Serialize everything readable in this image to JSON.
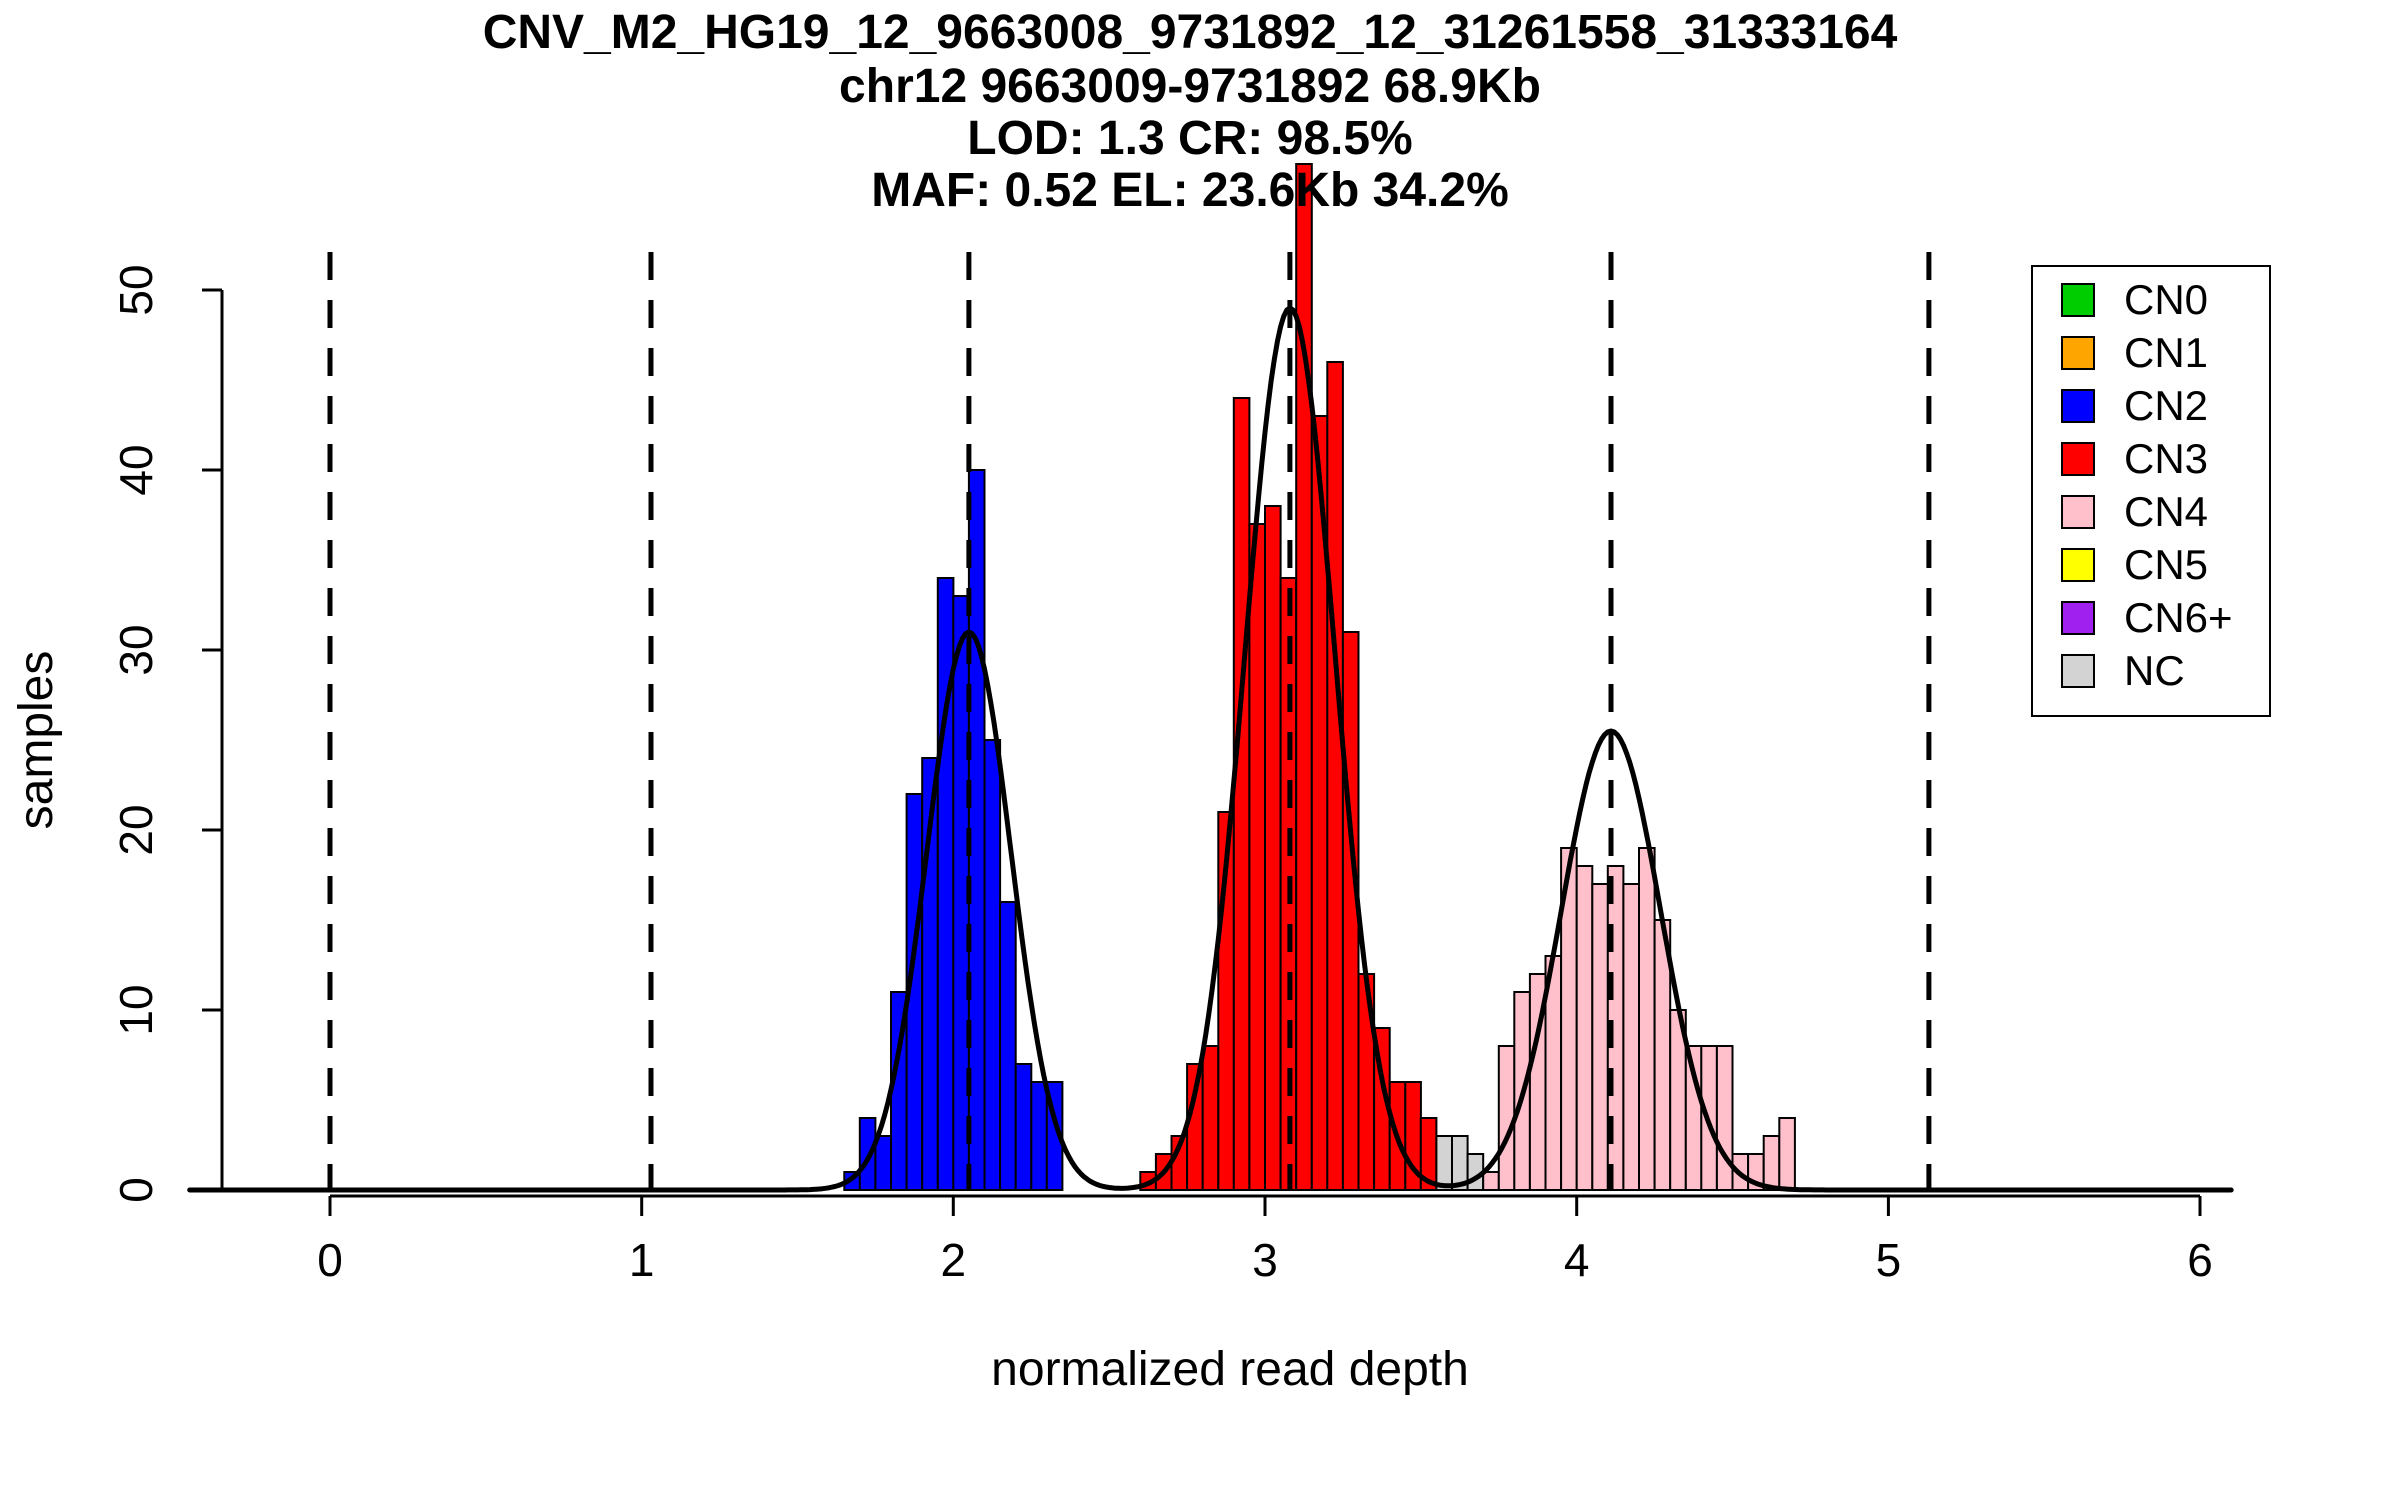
{
  "chart_data": {
    "type": "bar",
    "title_lines": [
      "CNV_M2_HG19_12_9663008_9731892_12_31261558_31333164",
      "chr12 9663009-9731892 68.9Kb",
      "LOD: 1.3 CR: 98.5%",
      "MAF: 0.52 EL: 23.6Kb 34.2%"
    ],
    "xlabel": "normalized read depth",
    "ylabel": "samples",
    "xlim": [
      -0.45,
      6.1
    ],
    "ylim": [
      0,
      52
    ],
    "xticks": [
      0,
      1,
      2,
      3,
      4,
      5,
      6
    ],
    "yticks": [
      0,
      10,
      20,
      30,
      40,
      50
    ],
    "grid": false,
    "bin_width": 0.05,
    "dashed_cluster_means_x": [
      0,
      1.03,
      2.05,
      3.08,
      4.11,
      5.13
    ],
    "histograms": [
      {
        "name": "CN2",
        "color": "#0000FF",
        "start": 1.65,
        "heights": [
          1,
          4,
          3,
          11,
          22,
          24,
          34,
          33,
          40,
          25,
          16,
          7,
          6,
          6
        ]
      },
      {
        "name": "CN3",
        "color": "#FF0000",
        "start": 2.6,
        "heights": [
          1,
          2,
          3,
          7,
          8,
          21,
          44,
          37,
          38,
          34,
          57,
          43,
          46,
          31,
          12,
          9,
          6,
          6,
          4
        ]
      },
      {
        "name": "NC",
        "color": "#D3D3D3",
        "start": 3.55,
        "heights": [
          3,
          3,
          2
        ]
      },
      {
        "name": "CN4",
        "color": "#FFC0CB",
        "start": 3.7,
        "heights": [
          1,
          8,
          11,
          12,
          13,
          19,
          18,
          17,
          18,
          17,
          19,
          15,
          10,
          8,
          8,
          8,
          2,
          2,
          3,
          4
        ]
      }
    ],
    "gaussian_fit_curves": [
      {
        "mean": 2.05,
        "amplitude": 31,
        "sd": 0.135
      },
      {
        "mean": 3.08,
        "amplitude": 49,
        "sd": 0.145
      },
      {
        "mean": 4.11,
        "amplitude": 25.5,
        "sd": 0.16
      }
    ],
    "legend": {
      "position": "top-right",
      "items": [
        {
          "label": "CN0",
          "color": "#00CD00"
        },
        {
          "label": "CN1",
          "color": "#FFA500"
        },
        {
          "label": "CN2",
          "color": "#0000FF"
        },
        {
          "label": "CN3",
          "color": "#FF0000"
        },
        {
          "label": "CN4",
          "color": "#FFC0CB"
        },
        {
          "label": "CN5",
          "color": "#FFFF00"
        },
        {
          "label": "CN6+",
          "color": "#A020F0"
        },
        {
          "label": "NC",
          "color": "#D3D3D3"
        }
      ]
    },
    "colors": {
      "bar_border": "#000000",
      "curve": "#000000",
      "axis": "#000000",
      "background": "#FFFFFF"
    }
  }
}
